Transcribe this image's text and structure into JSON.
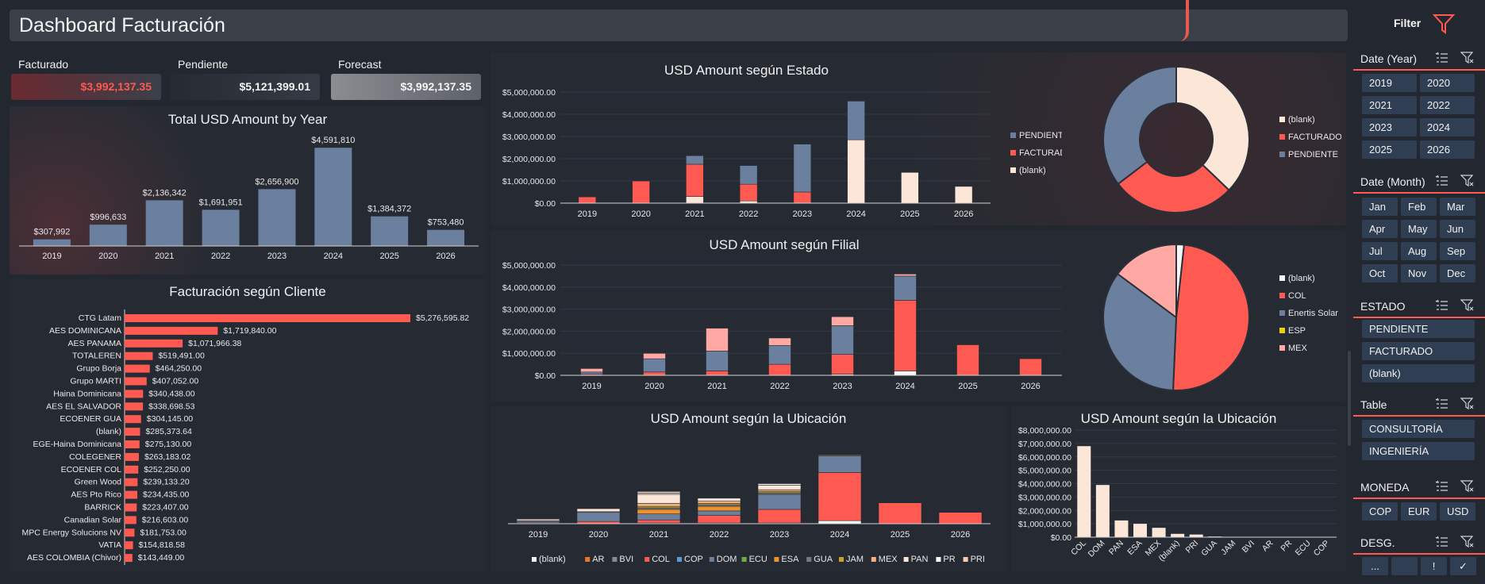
{
  "header": {
    "title": "Dashboard Facturación",
    "filter_label": "Filter",
    "filter_icon": "funnel-icon"
  },
  "colors": {
    "pendiente": "#6b7f9e",
    "facturado": "#ff5a52",
    "blank": "#fbe6d8",
    "accent": "#ff5a52",
    "slicer": "#2f3e52"
  },
  "kpis": [
    {
      "label": "Facturado",
      "value": "$3,992,137.35"
    },
    {
      "label": "Pendiente",
      "value": "$5,121,399.01"
    },
    {
      "label": "Forecast",
      "value": "$3,992,137.35"
    }
  ],
  "charts": {
    "total_by_year": {
      "title": "Total USD Amount by Year"
    },
    "cliente": {
      "title": "Facturación según Cliente"
    },
    "estado": {
      "title": "USD Amount según Estado"
    },
    "filial": {
      "title": "USD Amount según Filial"
    },
    "ubicacion": {
      "title": "USD Amount según la Ubicación"
    },
    "ubicacion_bar": {
      "title": "USD Amount según la Ubicación"
    }
  },
  "chart_data": [
    {
      "id": "total_by_year",
      "type": "bar",
      "categories": [
        "2019",
        "2020",
        "2021",
        "2022",
        "2023",
        "2024",
        "2025",
        "2026"
      ],
      "values": [
        307992,
        996633,
        2136342,
        1691951,
        2656900,
        4591810,
        1384372,
        753480
      ],
      "labels": [
        "$307,992",
        "$996,633",
        "$2,136,342",
        "$1,691,951",
        "$2,656,900",
        "$4,591,810",
        "$1,384,372",
        "$753,480"
      ],
      "ylim": [
        0,
        4600000
      ]
    },
    {
      "id": "cliente",
      "type": "bar",
      "orientation": "horizontal",
      "categories": [
        "CTG Latam",
        "AES DOMINICANA",
        "AES PANAMA",
        "TOTALEREN",
        "Grupo Borja",
        "Grupo MARTI",
        "Haina Dominicana",
        "AES EL SALVADOR",
        "ECOENER GUA",
        "(blank)",
        "EGE-Haina Dominicana",
        "COLEGENER",
        "ECOENER COL",
        "Green Wood",
        "AES Pto Rico",
        "BARRICK",
        "Canadian Solar",
        "MPC Energy Solucions NV",
        "VATIA",
        "AES COLOMBIA (Chivor)"
      ],
      "values": [
        5276595.82,
        1719840.0,
        1071966.38,
        519491.0,
        464250.0,
        407052.0,
        340438.0,
        338698.53,
        304145.0,
        285373.64,
        275130.0,
        263183.02,
        252250.0,
        239133.2,
        234435.0,
        223407.0,
        216603.0,
        181753.0,
        154818.58,
        143449.0
      ],
      "labels": [
        "$5,276,595.82",
        "$1,719,840.00",
        "$1,071,966.38",
        "$519,491.00",
        "$464,250.00",
        "$407,052.00",
        "$340,438.00",
        "$338,698.53",
        "$304,145.00",
        "$285,373.64",
        "$275,130.00",
        "$263,183.02",
        "$252,250.00",
        "$239,133.20",
        "$234,435.00",
        "$223,407.00",
        "$216,603.00",
        "$181,753.00",
        "$154,818.58",
        "$143,449.00"
      ]
    },
    {
      "id": "estado",
      "type": "bar",
      "stacked": true,
      "categories": [
        "2019",
        "2020",
        "2021",
        "2022",
        "2023",
        "2024",
        "2025",
        "2026"
      ],
      "yticks": [
        "$0.00",
        "$1,000,000.00",
        "$2,000,000.00",
        "$3,000,000.00",
        "$4,000,000.00",
        "$5,000,000.00"
      ],
      "ylim": [
        0,
        5000000
      ],
      "series": [
        {
          "name": "(blank)",
          "color": "#fbe6d8",
          "values": [
            0,
            0,
            300000,
            100000,
            0,
            2850000,
            1384372,
            753480
          ]
        },
        {
          "name": "FACTURADO",
          "color": "#ff5a52",
          "values": [
            280000,
            996633,
            1450000,
            750000,
            500000,
            0,
            0,
            0
          ]
        },
        {
          "name": "PENDIENTE",
          "color": "#6b7f9e",
          "values": [
            0,
            0,
            386342,
            841951,
            2156900,
            1741810,
            0,
            0
          ]
        }
      ],
      "legend_order": [
        "PENDIENTE",
        "FACTURADO",
        "(blank)"
      ]
    },
    {
      "id": "estado_pie",
      "type": "pie",
      "donut": true,
      "slices": [
        {
          "name": "(blank)",
          "value": 5390000,
          "color": "#fbe6d8"
        },
        {
          "name": "FACTURADO",
          "value": 3990000,
          "color": "#ff5a52"
        },
        {
          "name": "PENDIENTE",
          "value": 5130000,
          "color": "#6b7f9e"
        }
      ]
    },
    {
      "id": "filial",
      "type": "bar",
      "stacked": true,
      "categories": [
        "2019",
        "2020",
        "2021",
        "2022",
        "2023",
        "2024",
        "2025",
        "2026"
      ],
      "yticks": [
        "$0.00",
        "$1,000,000.00",
        "$2,000,000.00",
        "$3,000,000.00",
        "$4,000,000.00",
        "$5,000,000.00"
      ],
      "ylim": [
        0,
        5000000
      ],
      "series": [
        {
          "name": "(blank)",
          "color": "#f5f5f5",
          "values": [
            0,
            0,
            0,
            0,
            50000,
            200000,
            0,
            0
          ]
        },
        {
          "name": "COL",
          "color": "#ff5a52",
          "values": [
            50000,
            150000,
            200000,
            500000,
            900000,
            3200000,
            1384372,
            753480
          ]
        },
        {
          "name": "Enertis Solar",
          "color": "#6b7f9e",
          "values": [
            100000,
            600000,
            900000,
            850000,
            1300000,
            1100000,
            0,
            0
          ]
        },
        {
          "name": "ESP",
          "color": "#e8d300",
          "values": [
            0,
            0,
            0,
            0,
            0,
            0,
            0,
            0
          ]
        },
        {
          "name": "MEX",
          "color": "#ffa8a4",
          "values": [
            158000,
            246633,
            1036342,
            341951,
            406900,
            91810,
            0,
            0
          ]
        }
      ],
      "legend_order": [
        "(blank)",
        "COL",
        "Enertis Solar",
        "ESP",
        "MEX"
      ]
    },
    {
      "id": "filial_pie",
      "type": "pie",
      "slices": [
        {
          "name": "(blank)",
          "value": 250000,
          "color": "#f5f5f5"
        },
        {
          "name": "COL",
          "value": 7100000,
          "color": "#ff5a52"
        },
        {
          "name": "Enertis Solar",
          "value": 5000000,
          "color": "#6b7f9e"
        },
        {
          "name": "ESP",
          "value": 0,
          "color": "#e8d300"
        },
        {
          "name": "MEX",
          "value": 2150000,
          "color": "#ffa8a4"
        }
      ]
    },
    {
      "id": "ubicacion",
      "type": "bar",
      "stacked": true,
      "categories": [
        "2019",
        "2020",
        "2021",
        "2022",
        "2023",
        "2024",
        "2025",
        "2026"
      ],
      "series": [
        {
          "name": "(blank)",
          "color": "#f5f5f5",
          "values": [
            0,
            0,
            50000,
            50000,
            50000,
            200000,
            0,
            0
          ]
        },
        {
          "name": "AR",
          "color": "#e8762b",
          "values": [
            0,
            0,
            0,
            0,
            0,
            0,
            0,
            0
          ]
        },
        {
          "name": "BVI",
          "color": "#8a8a8a",
          "values": [
            0,
            0,
            0,
            0,
            0,
            0,
            0,
            0
          ]
        },
        {
          "name": "COL",
          "color": "#ff5a52",
          "values": [
            50000,
            150000,
            200000,
            500000,
            900000,
            3200000,
            1384372,
            753480
          ]
        },
        {
          "name": "COP",
          "color": "#5b9bd5",
          "values": [
            0,
            0,
            0,
            0,
            0,
            0,
            0,
            0
          ]
        },
        {
          "name": "DOM",
          "color": "#6b7f9e",
          "values": [
            100000,
            600000,
            400000,
            300000,
            1000000,
            1100000,
            0,
            0
          ]
        },
        {
          "name": "ECU",
          "color": "#70ad47",
          "values": [
            0,
            0,
            0,
            0,
            0,
            0,
            0,
            0
          ]
        },
        {
          "name": "ESA",
          "color": "#f0922c",
          "values": [
            0,
            0,
            300000,
            300000,
            0,
            0,
            0,
            0
          ]
        },
        {
          "name": "GUA",
          "color": "#7a7a7a",
          "values": [
            0,
            0,
            100000,
            100000,
            100000,
            0,
            0,
            0
          ]
        },
        {
          "name": "JAM",
          "color": "#c9a227",
          "values": [
            0,
            0,
            100000,
            100000,
            100000,
            50000,
            0,
            0
          ]
        },
        {
          "name": "MEX",
          "color": "#f4b183",
          "values": [
            58000,
            46633,
            200000,
            141951,
            106900,
            41810,
            0,
            0
          ]
        },
        {
          "name": "PAN",
          "color": "#fbe6d8",
          "values": [
            100000,
            200000,
            600000,
            200000,
            300000,
            0,
            0,
            0
          ]
        },
        {
          "name": "PR",
          "color": "#ffffff",
          "values": [
            0,
            0,
            86342,
            0,
            100000,
            0,
            0,
            0
          ]
        },
        {
          "name": "PRI",
          "color": "#f8cbad",
          "values": [
            0,
            0,
            100000,
            0,
            0,
            0,
            0,
            0
          ]
        }
      ],
      "legend_order": [
        "(blank)",
        "AR",
        "BVI",
        "COL",
        "COP",
        "DOM",
        "ECU",
        "ESA",
        "GUA",
        "JAM",
        "MEX",
        "PAN",
        "PR",
        "PRI"
      ]
    },
    {
      "id": "ubicacion_bar",
      "type": "bar",
      "categories": [
        "COL",
        "DOM",
        "PAN",
        "ESA",
        "MEX",
        "(blank)",
        "PRI",
        "GUA",
        "JAM",
        "BVI",
        "AR",
        "PR",
        "ECU",
        "COP"
      ],
      "values": [
        6800000,
        3900000,
        1250000,
        1000000,
        700000,
        250000,
        200000,
        50000,
        20000,
        0,
        0,
        0,
        0,
        0
      ],
      "yticks": [
        "$0.00",
        "$1,000,000.00",
        "$2,000,000.00",
        "$3,000,000.00",
        "$4,000,000.00",
        "$5,000,000.00",
        "$6,000,000.00",
        "$7,000,000.00",
        "$8,000,000.00"
      ],
      "ylim": [
        0,
        8000000
      ]
    }
  ],
  "slicers": {
    "year": {
      "title": "Date (Year)",
      "items": [
        "2019",
        "2020",
        "2021",
        "2022",
        "2023",
        "2024",
        "2025",
        "2026"
      ]
    },
    "month": {
      "title": "Date (Month)",
      "items": [
        "Jan",
        "Feb",
        "Mar",
        "Apr",
        "May",
        "Jun",
        "Jul",
        "Aug",
        "Sep",
        "Oct",
        "Nov",
        "Dec"
      ]
    },
    "estado": {
      "title": "ESTADO",
      "items": [
        "PENDIENTE",
        "FACTURADO",
        "(blank)"
      ]
    },
    "table": {
      "title": "Table",
      "items": [
        "CONSULTORÍA",
        "INGENIERÍA"
      ]
    },
    "moneda": {
      "title": "MONEDA",
      "items": [
        "COP",
        "EUR",
        "USD"
      ]
    },
    "desg": {
      "title": "DESG.",
      "items": [
        "...",
        "",
        "!",
        "✓"
      ]
    }
  }
}
